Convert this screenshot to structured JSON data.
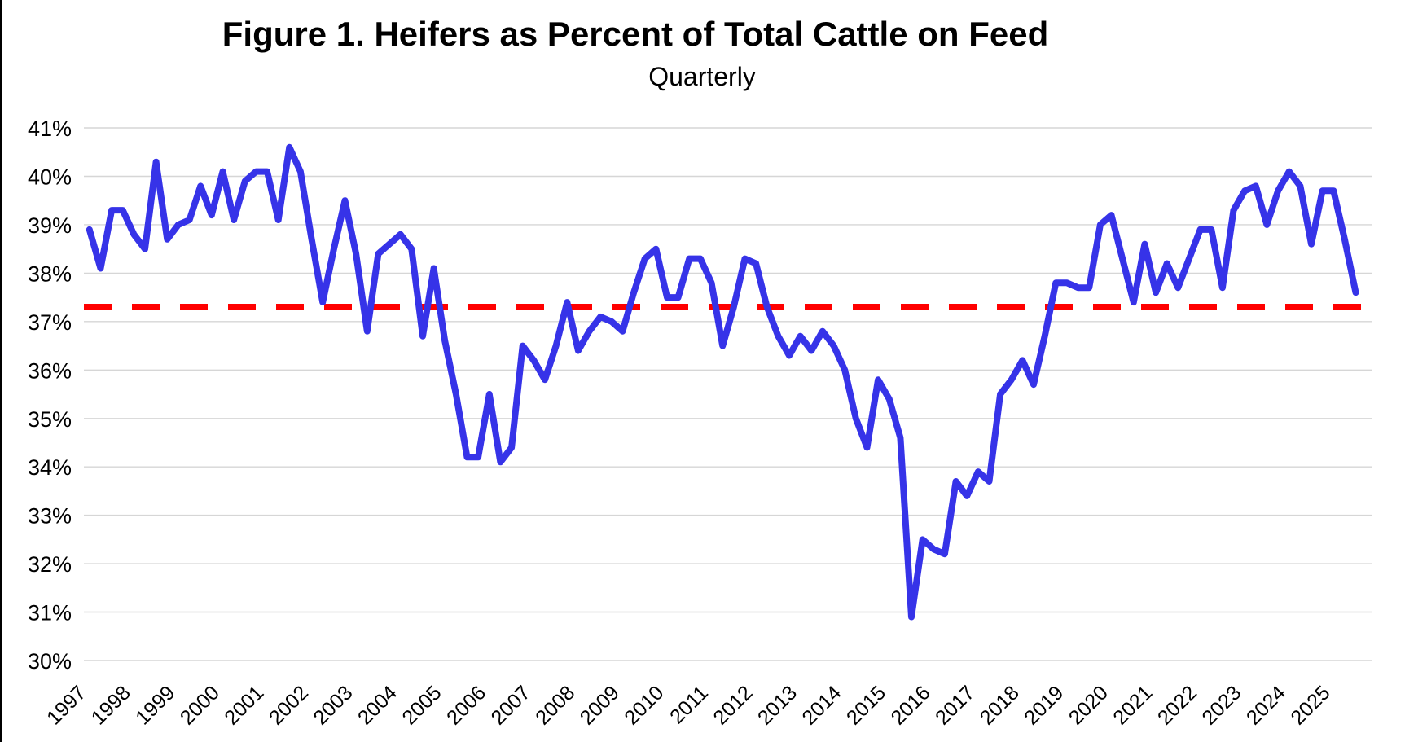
{
  "chart_data": {
    "type": "line",
    "title": "Figure 1. Heifers as Percent of Total Cattle on Feed",
    "subtitle": "Quarterly",
    "x_frequency": "quarterly",
    "x_range": {
      "start": "1997 Q1",
      "end": "2025 Q3"
    },
    "x_tick_labels": [
      "1997",
      "1998",
      "1999",
      "2000",
      "2001",
      "2002",
      "2003",
      "2004",
      "2005",
      "2006",
      "2007",
      "2008",
      "2009",
      "2010",
      "2011",
      "2012",
      "2013",
      "2014",
      "2015",
      "2016",
      "2017",
      "2018",
      "2019",
      "2020",
      "2021",
      "2022",
      "2023",
      "2024",
      "2025"
    ],
    "y_axis": {
      "min": 30,
      "max": 41,
      "tick_step": 1,
      "tick_format": "percent",
      "tick_labels": [
        "41%",
        "40%",
        "39%",
        "38%",
        "37%",
        "36%",
        "35%",
        "34%",
        "33%",
        "32%",
        "31%",
        "30%"
      ]
    },
    "grid": true,
    "legend": false,
    "series": [
      {
        "name": "Heifers as percent of total cattle on feed",
        "color": "#3633E8",
        "values": [
          38.9,
          38.1,
          39.3,
          39.3,
          38.8,
          38.5,
          40.3,
          38.7,
          39.0,
          39.1,
          39.8,
          39.2,
          40.1,
          39.1,
          39.9,
          40.1,
          40.1,
          39.1,
          40.6,
          40.1,
          38.7,
          37.4,
          38.5,
          39.5,
          38.4,
          36.8,
          38.4,
          38.6,
          38.8,
          38.5,
          36.7,
          38.1,
          36.6,
          35.5,
          34.2,
          34.2,
          35.5,
          34.1,
          34.4,
          36.5,
          36.2,
          35.8,
          36.5,
          37.4,
          36.4,
          36.8,
          37.1,
          37.0,
          36.8,
          37.6,
          38.3,
          38.5,
          37.5,
          37.5,
          38.3,
          38.3,
          37.8,
          36.5,
          37.3,
          38.3,
          38.2,
          37.3,
          36.7,
          36.3,
          36.7,
          36.4,
          36.8,
          36.5,
          36.0,
          35.0,
          34.4,
          35.8,
          35.4,
          34.6,
          30.9,
          32.5,
          32.3,
          32.2,
          33.7,
          33.4,
          33.9,
          33.7,
          35.5,
          35.8,
          36.2,
          35.7,
          36.7,
          37.8,
          37.8,
          37.7,
          37.7,
          39.0,
          39.2,
          38.3,
          37.4,
          38.6,
          37.6,
          38.2,
          37.7,
          38.3,
          38.9,
          38.9,
          37.7,
          39.3,
          39.7,
          39.8,
          39.0,
          39.7,
          40.1,
          39.8,
          38.6,
          39.7,
          39.7,
          38.7,
          37.6
        ]
      }
    ],
    "reference_line": {
      "value": 37.3,
      "color": "#FF0000",
      "style": "dashed"
    },
    "colors": {
      "background": "#FFFFFF",
      "gridline": "#D6D6D6",
      "text": "#000000"
    }
  }
}
